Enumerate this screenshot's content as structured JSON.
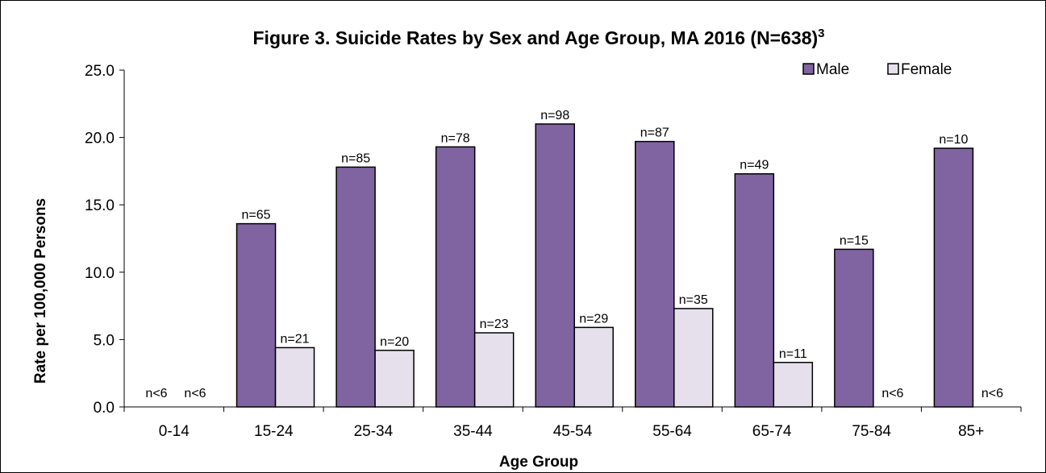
{
  "chart_data": {
    "type": "bar",
    "title": "Figure 3. Suicide Rates by Sex and Age Group, MA 2016 (N=638)",
    "title_superscript": "3",
    "xlabel": "Age Group",
    "ylabel": "Rate per 100,000 Persons",
    "ylim": [
      0,
      25
    ],
    "yticks": [
      "0.0",
      "5.0",
      "10.0",
      "15.0",
      "20.0",
      "25.0"
    ],
    "grid": false,
    "legend_position": "top-right",
    "categories": [
      "0-14",
      "15-24",
      "25-34",
      "35-44",
      "45-54",
      "55-64",
      "65-74",
      "75-84",
      "85+"
    ],
    "series": [
      {
        "name": "Male",
        "color": "#8064a2",
        "values": [
          null,
          13.6,
          17.8,
          19.3,
          21.0,
          19.7,
          17.3,
          11.7,
          19.2
        ],
        "labels": [
          "n<6",
          "n=65",
          "n=85",
          "n=78",
          "n=98",
          "n=87",
          "n=49",
          "n=15",
          "n=10"
        ]
      },
      {
        "name": "Female",
        "color": "#e6e0ec",
        "values": [
          null,
          4.4,
          4.2,
          5.5,
          5.9,
          7.3,
          3.3,
          null,
          null
        ],
        "labels": [
          "n<6",
          "n=21",
          "n=20",
          "n=23",
          "n=29",
          "n=35",
          "n=11",
          "n<6",
          "n<6"
        ]
      }
    ]
  }
}
